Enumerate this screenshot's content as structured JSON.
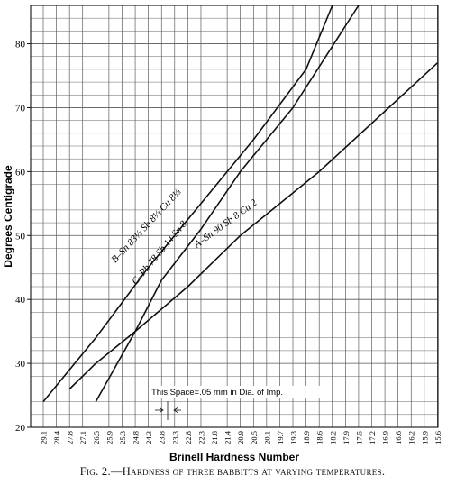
{
  "chart_data": {
    "type": "line",
    "title": "Fig. 2.—Hardness of three babbitts at varying temperatures.",
    "xlabel": "Brinell Hardness Number",
    "ylabel": "Degrees Centigrade",
    "x_tick_labels": [
      "29.1",
      "28.4",
      "27.8",
      "27.1",
      "26.5",
      "25.9",
      "25.3",
      "24.8",
      "24.3",
      "23.8",
      "23.3",
      "22.8",
      "22.3",
      "21.8",
      "21.4",
      "20.9",
      "20.5",
      "20.1",
      "19.7",
      "19.3",
      "18.9",
      "18.6",
      "18.2",
      "17.9",
      "17.5",
      "17.2",
      "16.9",
      "16.6",
      "16.2",
      "15.9",
      "15.6"
    ],
    "y_ticks": [
      20,
      30,
      40,
      50,
      60,
      70,
      80
    ],
    "ylim": [
      20,
      86
    ],
    "grid": true,
    "annotation": "This Space=.05 mm in Dia. of Imp.",
    "series": [
      {
        "name": "B–Sn 83⅓ Sb 8⅓ Cu 8⅓",
        "x": [
          29.1,
          26.5,
          24.3,
          22.3,
          20.5,
          18.9,
          18.2
        ],
        "y": [
          24,
          34,
          45,
          55,
          65,
          76,
          86
        ]
      },
      {
        "name": "C–Pb 78 Sb 14 Sn 8",
        "x": [
          26.5,
          24.8,
          23.8,
          22.3,
          20.9,
          19.3,
          17.5
        ],
        "y": [
          24,
          35,
          43,
          51,
          60,
          70,
          86
        ]
      },
      {
        "name": "A–Sn 90 Sb 8 Cu 2",
        "x": [
          27.8,
          26.5,
          24.8,
          22.8,
          20.9,
          18.6,
          15.6
        ],
        "y": [
          26,
          30,
          35,
          42,
          50,
          60,
          77
        ]
      }
    ]
  }
}
